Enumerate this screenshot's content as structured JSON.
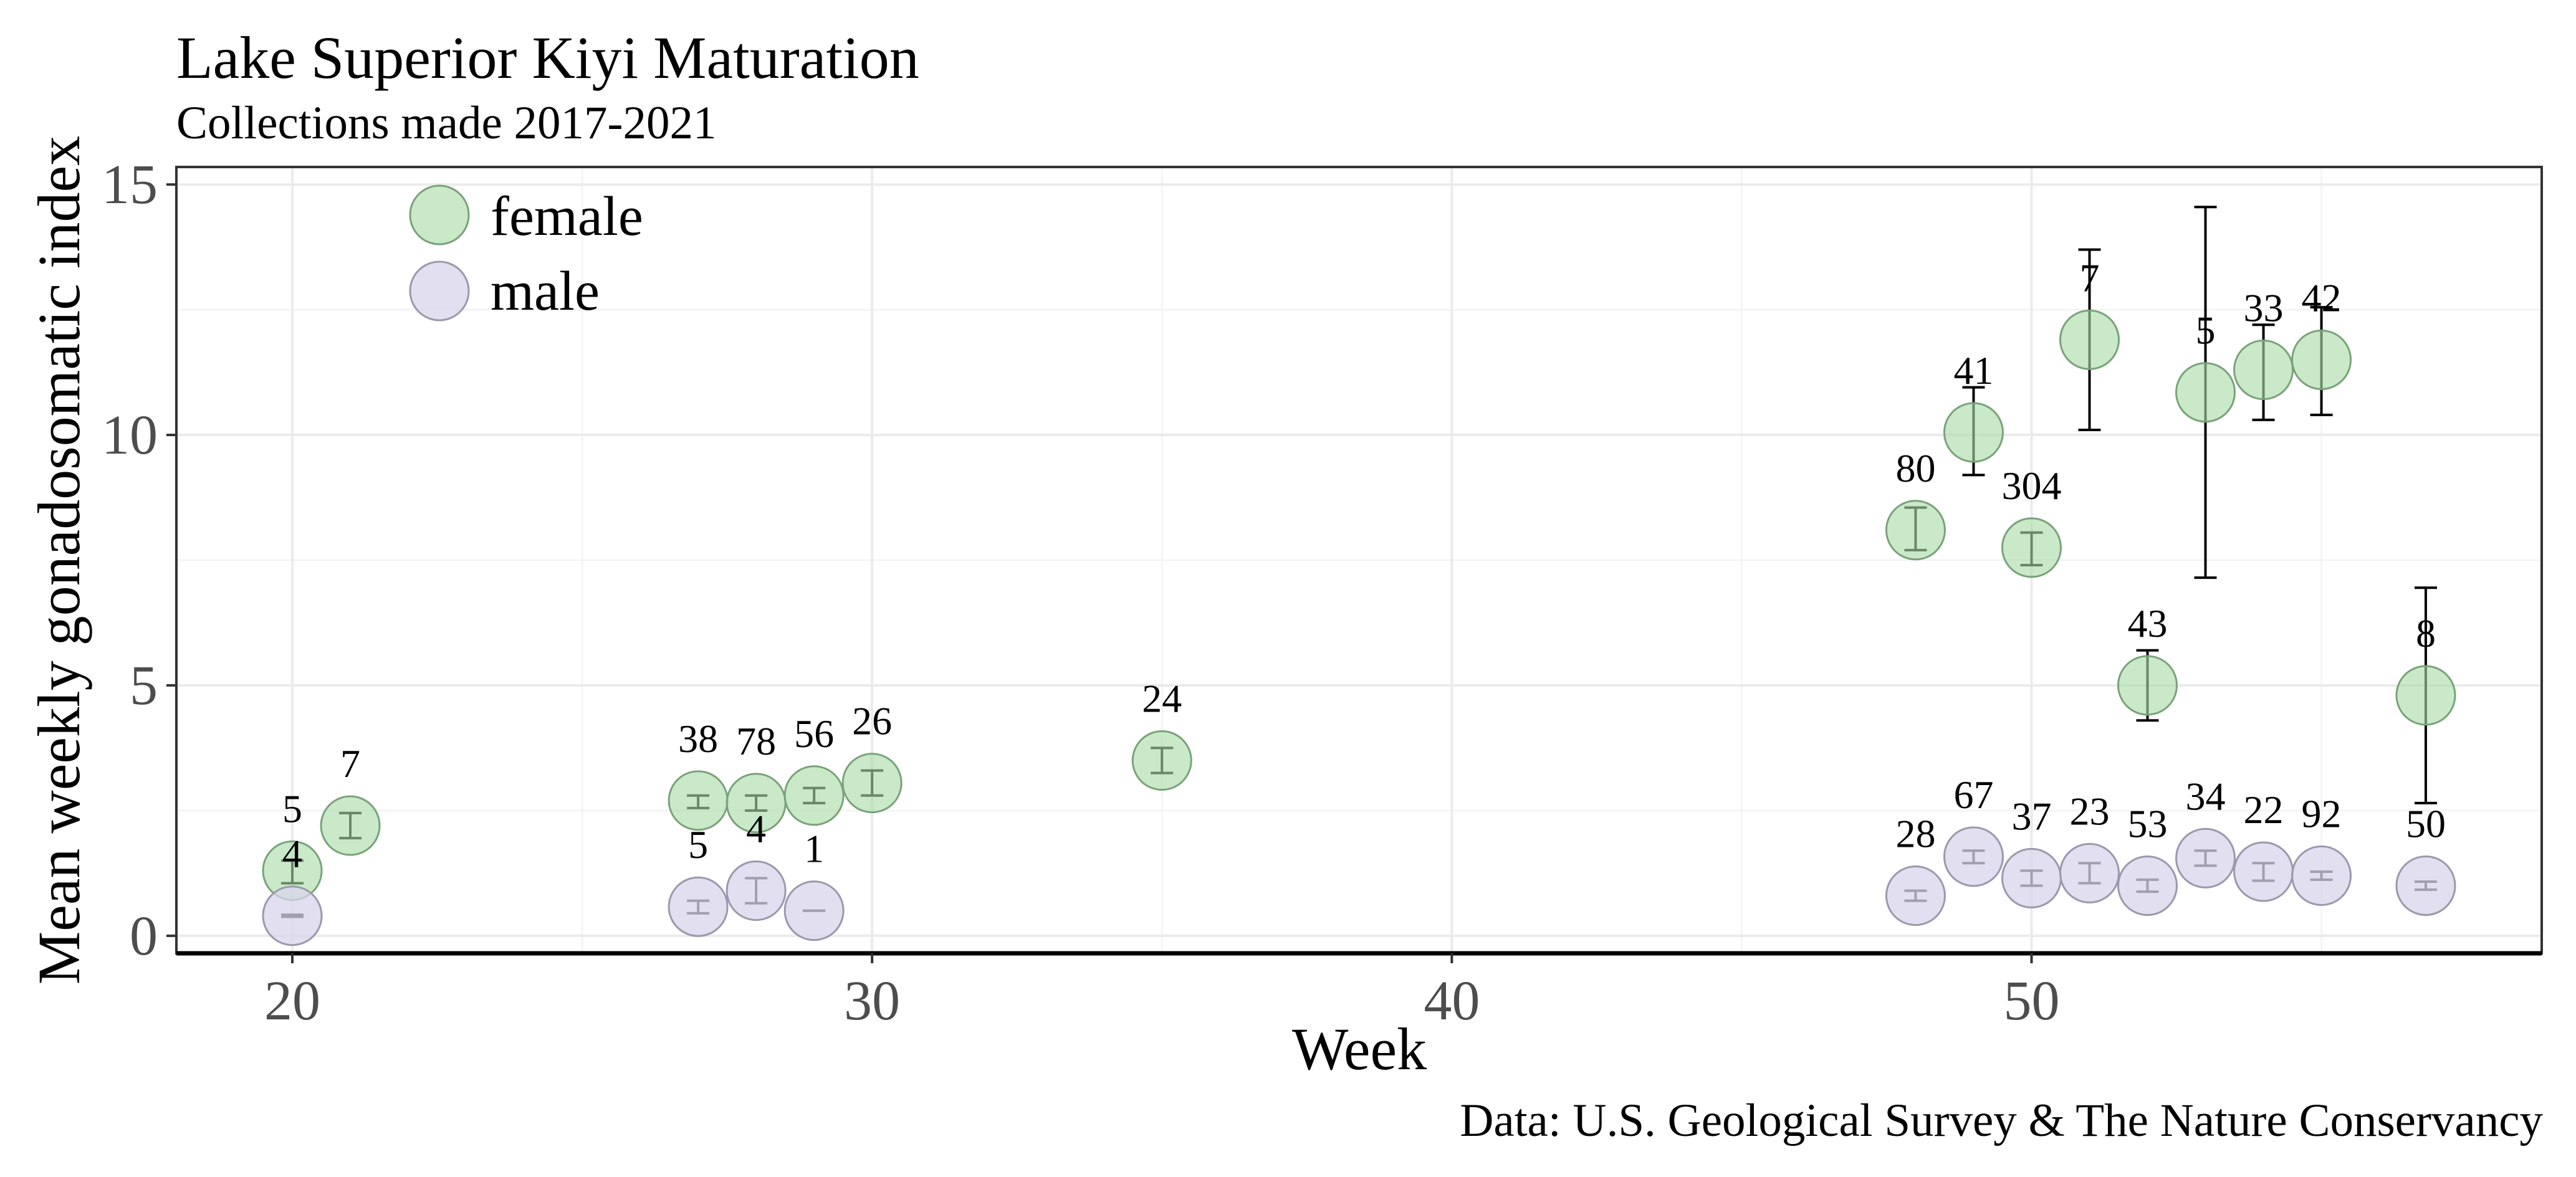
{
  "chart_data": {
    "type": "scatter",
    "title": "Lake Superior Kiyi Maturation",
    "subtitle": "Collections made 2017-2021",
    "xlabel": "Week",
    "ylabel": "Mean weekly gonadosomatic index",
    "caption": "Data: U.S. Geological Survey & The Nature Conservancy",
    "xlim": [
      18,
      58.8
    ],
    "ylim": [
      -0.35,
      15.35
    ],
    "xticks": [
      20,
      30,
      40,
      50
    ],
    "yticks": [
      0,
      5,
      10,
      15
    ],
    "grid": true,
    "legend_position": "top-left",
    "series": [
      {
        "name": "female",
        "color": "#a8dba8",
        "stroke": "#7aa27a",
        "points": [
          {
            "x": 20,
            "y": 1.3,
            "lo": 1.05,
            "hi": 1.5,
            "n": "5"
          },
          {
            "x": 21,
            "y": 2.2,
            "lo": 1.95,
            "hi": 2.45,
            "n": "7"
          },
          {
            "x": 27,
            "y": 2.7,
            "lo": 2.55,
            "hi": 2.8,
            "n": "38"
          },
          {
            "x": 28,
            "y": 2.65,
            "lo": 2.5,
            "hi": 2.8,
            "n": "78"
          },
          {
            "x": 29,
            "y": 2.8,
            "lo": 2.65,
            "hi": 2.95,
            "n": "56"
          },
          {
            "x": 30,
            "y": 3.05,
            "lo": 2.8,
            "hi": 3.3,
            "n": "26"
          },
          {
            "x": 35,
            "y": 3.5,
            "lo": 3.25,
            "hi": 3.75,
            "n": "24"
          },
          {
            "x": 48,
            "y": 8.1,
            "lo": 7.7,
            "hi": 8.55,
            "n": "80"
          },
          {
            "x": 49,
            "y": 10.05,
            "lo": 9.2,
            "hi": 10.95,
            "n": "41"
          },
          {
            "x": 50,
            "y": 7.75,
            "lo": 7.4,
            "hi": 8.05,
            "n": "304"
          },
          {
            "x": 51,
            "y": 11.9,
            "lo": 10.1,
            "hi": 13.7,
            "n": "7"
          },
          {
            "x": 52,
            "y": 5.0,
            "lo": 4.3,
            "hi": 5.7,
            "n": "43"
          },
          {
            "x": 53,
            "y": 10.85,
            "lo": 7.15,
            "hi": 14.55,
            "n": "5"
          },
          {
            "x": 54,
            "y": 11.3,
            "lo": 10.3,
            "hi": 12.2,
            "n": "33"
          },
          {
            "x": 55,
            "y": 11.5,
            "lo": 10.4,
            "hi": 12.55,
            "n": "42"
          },
          {
            "x": 56.8,
            "y": 4.8,
            "lo": 2.65,
            "hi": 6.95,
            "n": "8"
          }
        ]
      },
      {
        "name": "male",
        "color": "#d8d4ec",
        "stroke": "#9c98ac",
        "points": [
          {
            "x": 20,
            "y": 0.4,
            "lo": 0.38,
            "hi": 0.42,
            "n": "4"
          },
          {
            "x": 27,
            "y": 0.58,
            "lo": 0.45,
            "hi": 0.7,
            "n": "5"
          },
          {
            "x": 28,
            "y": 0.9,
            "lo": 0.65,
            "hi": 1.15,
            "n": "4"
          },
          {
            "x": 29,
            "y": 0.5,
            "lo": 0.5,
            "hi": 0.5,
            "n": "1"
          },
          {
            "x": 48,
            "y": 0.8,
            "lo": 0.7,
            "hi": 0.9,
            "n": "28"
          },
          {
            "x": 49,
            "y": 1.58,
            "lo": 1.45,
            "hi": 1.7,
            "n": "67"
          },
          {
            "x": 50,
            "y": 1.15,
            "lo": 1.0,
            "hi": 1.3,
            "n": "37"
          },
          {
            "x": 51,
            "y": 1.25,
            "lo": 1.05,
            "hi": 1.45,
            "n": "23"
          },
          {
            "x": 52,
            "y": 1.0,
            "lo": 0.88,
            "hi": 1.12,
            "n": "53"
          },
          {
            "x": 53,
            "y": 1.55,
            "lo": 1.4,
            "hi": 1.7,
            "n": "34"
          },
          {
            "x": 54,
            "y": 1.28,
            "lo": 1.1,
            "hi": 1.45,
            "n": "22"
          },
          {
            "x": 55,
            "y": 1.2,
            "lo": 1.12,
            "hi": 1.28,
            "n": "92"
          },
          {
            "x": 56.8,
            "y": 1.0,
            "lo": 0.92,
            "hi": 1.08,
            "n": "50"
          }
        ]
      }
    ]
  }
}
